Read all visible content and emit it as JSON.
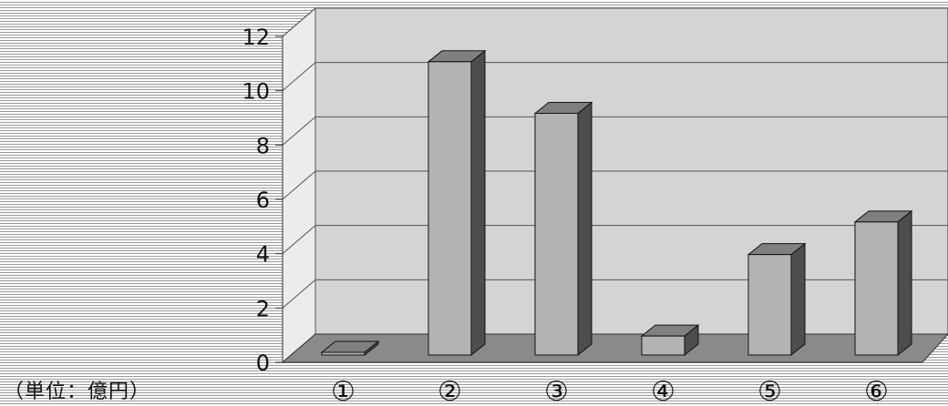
{
  "chart_data": {
    "type": "bar",
    "categories": [
      "①",
      "②",
      "③",
      "④",
      "⑤",
      "⑥"
    ],
    "values": [
      0.1,
      10.8,
      8.9,
      0.7,
      3.7,
      4.9
    ],
    "ylim": [
      0,
      12
    ],
    "yticks": [
      "0",
      "2",
      "4",
      "6",
      "8",
      "10",
      "12"
    ],
    "unit_label": "（単位：億円）",
    "grid": true,
    "legend": "none"
  },
  "colors": {
    "plot_back_wall": "#d4d4d4",
    "floor": "#8a8a8a",
    "grid": "#555555",
    "bar_front": "#b3b3b3",
    "bar_top": "#808080",
    "bar_side": "#4d4d4d"
  }
}
